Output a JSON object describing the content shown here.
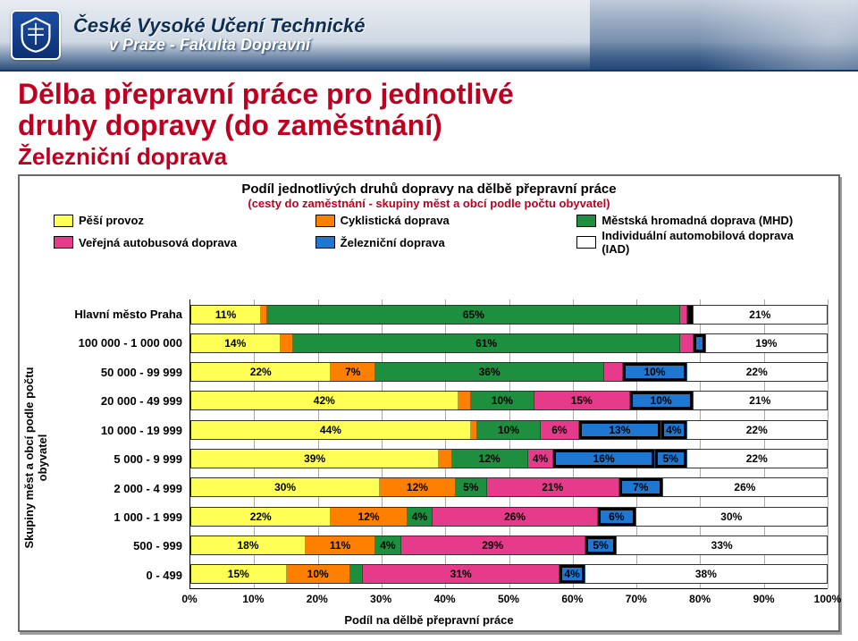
{
  "banner": {
    "line1": "České Vysoké Učení Technické",
    "line2": "v Praze - Fakulta Dopravní"
  },
  "title": {
    "line1": "Dělba přepravní práce pro jednotlivé",
    "line2": "druhy dopravy (do zaměstnání)",
    "line3": "Železniční doprava",
    "color": "#c00020"
  },
  "chart": {
    "title": "Podíl jednotlivých druhů dopravy na dělbě přepravní práce",
    "subtitle": "(cesty do zaměstnání - skupiny měst a obcí podle počtu obyvatel)",
    "subtitle_color": "#c00020",
    "xlabel": "Podíl na dělbě přepravní práce",
    "ylabel": "Skupiny měst a obcí podle počtu\nobyvatel",
    "xlim": [
      0,
      100
    ],
    "xtick_step": 10,
    "highlight_series_index": 4,
    "series": [
      {
        "name": "Pěší provoz",
        "color": "#ffff55"
      },
      {
        "name": "Cyklistická doprava",
        "color": "#ff7f00"
      },
      {
        "name": "Městská hromadná doprava (MHD)",
        "color": "#1e8f3e"
      },
      {
        "name": "Veřejná autobusová doprava",
        "color": "#e63b8a"
      },
      {
        "name": "Železniční doprava",
        "color": "#1e78d2"
      },
      {
        "name": "Individuální automobilová doprava (IAD)",
        "color": "#ffffff"
      }
    ],
    "legend_order": [
      0,
      1,
      2,
      3,
      4,
      5
    ],
    "categories": [
      "Hlavní město Praha",
      "100 000 - 1 000 000",
      "50 000 - 99 999",
      "20 000 - 49 999",
      "10 000 - 19 999",
      "5 000 - 9 999",
      "2 000 - 4 999",
      "1 000 - 1 999",
      "500 - 999",
      "0 - 499"
    ],
    "data": [
      [
        11,
        1,
        65,
        1,
        1,
        21
      ],
      [
        14,
        2,
        61,
        2,
        2,
        19
      ],
      [
        22,
        7,
        36,
        3,
        10,
        22
      ],
      [
        42,
        2,
        10,
        15,
        10,
        21
      ],
      [
        44,
        1,
        10,
        6,
        13,
        4,
        22
      ],
      [
        39,
        2,
        12,
        4,
        16,
        5,
        22
      ],
      [
        30,
        12,
        5,
        21,
        7,
        26
      ],
      [
        22,
        12,
        4,
        26,
        6,
        30
      ],
      [
        18,
        11,
        4,
        29,
        5,
        33
      ],
      [
        15,
        10,
        2,
        31,
        4,
        38
      ]
    ],
    "series_index": [
      [
        0,
        1,
        2,
        3,
        4,
        5
      ],
      [
        0,
        1,
        2,
        3,
        4,
        5
      ],
      [
        0,
        1,
        2,
        3,
        4,
        5
      ],
      [
        0,
        1,
        2,
        3,
        4,
        5
      ],
      [
        0,
        1,
        2,
        3,
        4,
        4,
        5
      ],
      [
        0,
        1,
        2,
        3,
        4,
        4,
        5
      ],
      [
        0,
        1,
        2,
        3,
        4,
        5
      ],
      [
        0,
        1,
        2,
        3,
        4,
        5
      ],
      [
        0,
        1,
        2,
        3,
        4,
        5
      ],
      [
        0,
        1,
        2,
        3,
        4,
        5
      ]
    ],
    "label_min_pct": 4
  }
}
